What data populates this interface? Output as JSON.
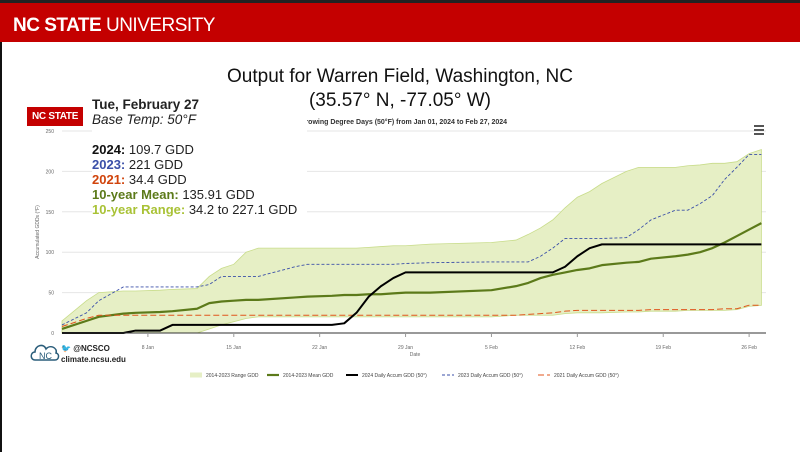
{
  "header": {
    "brand_bold": "NC STATE",
    "brand_light": " UNIVERSITY"
  },
  "title_line1": "Output for Warren Field, Washington, NC",
  "title_line2": "(35.57° N, -77.05° W)",
  "badge": "NC STATE",
  "info": {
    "date": "Tue, February 27",
    "base_temp": "Base Temp: 50°F",
    "rows": [
      {
        "label": "2024:",
        "value": " 109.7 GDD",
        "color": "#111111"
      },
      {
        "label": "2023:",
        "value": " 221 GDD",
        "color": "#3a4fa8"
      },
      {
        "label": "2021:",
        "value": " 34.4 GDD",
        "color": "#d1440c"
      },
      {
        "label": "10-year Mean:",
        "value": " 135.91 GDD",
        "color": "#5c7a1a"
      },
      {
        "label": "10-year Range:",
        "value": " 34.2 to 227.1 GDD",
        "color": "#a9c236"
      }
    ]
  },
  "social": {
    "handle": "@NCSCO",
    "site": "climate.ncsu.edu"
  },
  "chart_data": {
    "type": "line",
    "title": "Growing Degree Days (50°F) from Jan 01, 2024 to Feb 27, 2024",
    "xlabel": "Date",
    "ylabel": "Accumulated GDDs (°F)",
    "x_start": "2024-01-01",
    "x_end": "2024-02-27",
    "ylim": [
      0,
      250
    ],
    "yticks": [
      "0",
      "50",
      "100",
      "150",
      "200",
      "250"
    ],
    "xticks": [
      {
        "label": "8 Jan",
        "day": 7
      },
      {
        "label": "15 Jan",
        "day": 14
      },
      {
        "label": "22 Jan",
        "day": 21
      },
      {
        "label": "29 Jan",
        "day": 28
      },
      {
        "label": "5 Feb",
        "day": 35
      },
      {
        "label": "12 Feb",
        "day": 42
      },
      {
        "label": "19 Feb",
        "day": 49
      },
      {
        "label": "26 Feb",
        "day": 56
      }
    ],
    "grid": true,
    "legend_placement": "bottom",
    "days": [
      0,
      2,
      3,
      5,
      6,
      8,
      9,
      11,
      12,
      13,
      14,
      15,
      16,
      19,
      20,
      22,
      23,
      24,
      25,
      26,
      27,
      28,
      30,
      35,
      37,
      38,
      39,
      40,
      41,
      42,
      43,
      44,
      46,
      47,
      48,
      50,
      51,
      52,
      53,
      54,
      55,
      56,
      57
    ],
    "range": {
      "name": "2014-2023 Range GDD",
      "color": "#e6efc5",
      "stroke": "#c8dc8a",
      "upper": [
        15,
        40,
        50,
        52,
        52,
        53,
        54,
        55,
        70,
        80,
        85,
        100,
        105,
        105,
        105,
        105,
        105,
        105,
        106,
        107,
        108,
        108,
        110,
        112,
        115,
        122,
        130,
        140,
        155,
        168,
        175,
        185,
        200,
        205,
        205,
        205,
        207,
        208,
        210,
        210,
        212,
        222,
        227.1
      ],
      "lower": [
        0,
        0,
        0,
        0,
        0,
        0,
        0,
        0,
        5,
        10,
        14,
        18,
        20,
        20,
        20,
        20,
        20,
        20,
        20,
        20,
        20,
        20,
        20,
        20,
        22,
        22,
        22,
        22,
        24,
        25,
        25,
        25,
        26,
        26,
        27,
        27,
        28,
        28,
        28,
        28,
        29,
        33,
        34.2
      ]
    },
    "series": [
      {
        "name": "2014-2023 Mean GDD",
        "color": "#5c7a1a",
        "dash": "none",
        "values": [
          5,
          15,
          20,
          24,
          25,
          26,
          27,
          30,
          37,
          39,
          40,
          41,
          41,
          44,
          45,
          46,
          47,
          47,
          48,
          48,
          49,
          50,
          50,
          53,
          58,
          62,
          68,
          72,
          75,
          78,
          80,
          84,
          87,
          88,
          92,
          95,
          97,
          100,
          105,
          112,
          120,
          128,
          136
        ]
      },
      {
        "name": "2024 Daily Accum GDD (50°)",
        "color": "#000000",
        "dash": "none",
        "values": [
          0,
          0,
          0,
          0,
          3,
          3,
          10,
          10,
          10,
          10,
          10,
          10,
          10,
          10,
          10,
          10,
          12,
          25,
          45,
          58,
          68,
          75,
          75,
          75,
          75,
          75,
          75,
          75,
          82,
          95,
          105,
          109.7,
          109.7,
          109.7,
          109.7,
          109.7,
          109.7,
          109.7,
          109.7,
          109.7,
          109.7,
          109.7,
          109.7
        ]
      },
      {
        "name": "2023 Daily Accum GDD (50°)",
        "color": "#3a4fa8",
        "dash": "3,2",
        "values": [
          10,
          25,
          40,
          57,
          57,
          57,
          57,
          57,
          60,
          70,
          70,
          70,
          70,
          82,
          85,
          85,
          85,
          85,
          85,
          85,
          85,
          86,
          87,
          88,
          88,
          88,
          95,
          105,
          117,
          117,
          117,
          117,
          118,
          128,
          140,
          152,
          152,
          160,
          170,
          190,
          205,
          221,
          221
        ]
      },
      {
        "name": "2021 Daily Accum GDD (50°)",
        "color": "#e0561c",
        "dash": "6,3",
        "values": [
          8,
          18,
          22,
          22,
          22,
          22,
          22,
          22,
          22,
          22,
          22,
          22,
          22,
          22,
          22,
          22,
          22,
          22,
          22,
          22,
          22,
          22,
          22,
          22,
          22,
          23,
          24,
          25,
          27,
          28,
          28,
          28,
          28,
          28,
          29,
          29,
          29,
          29,
          29,
          30,
          30,
          34.4,
          34.4
        ]
      }
    ]
  }
}
